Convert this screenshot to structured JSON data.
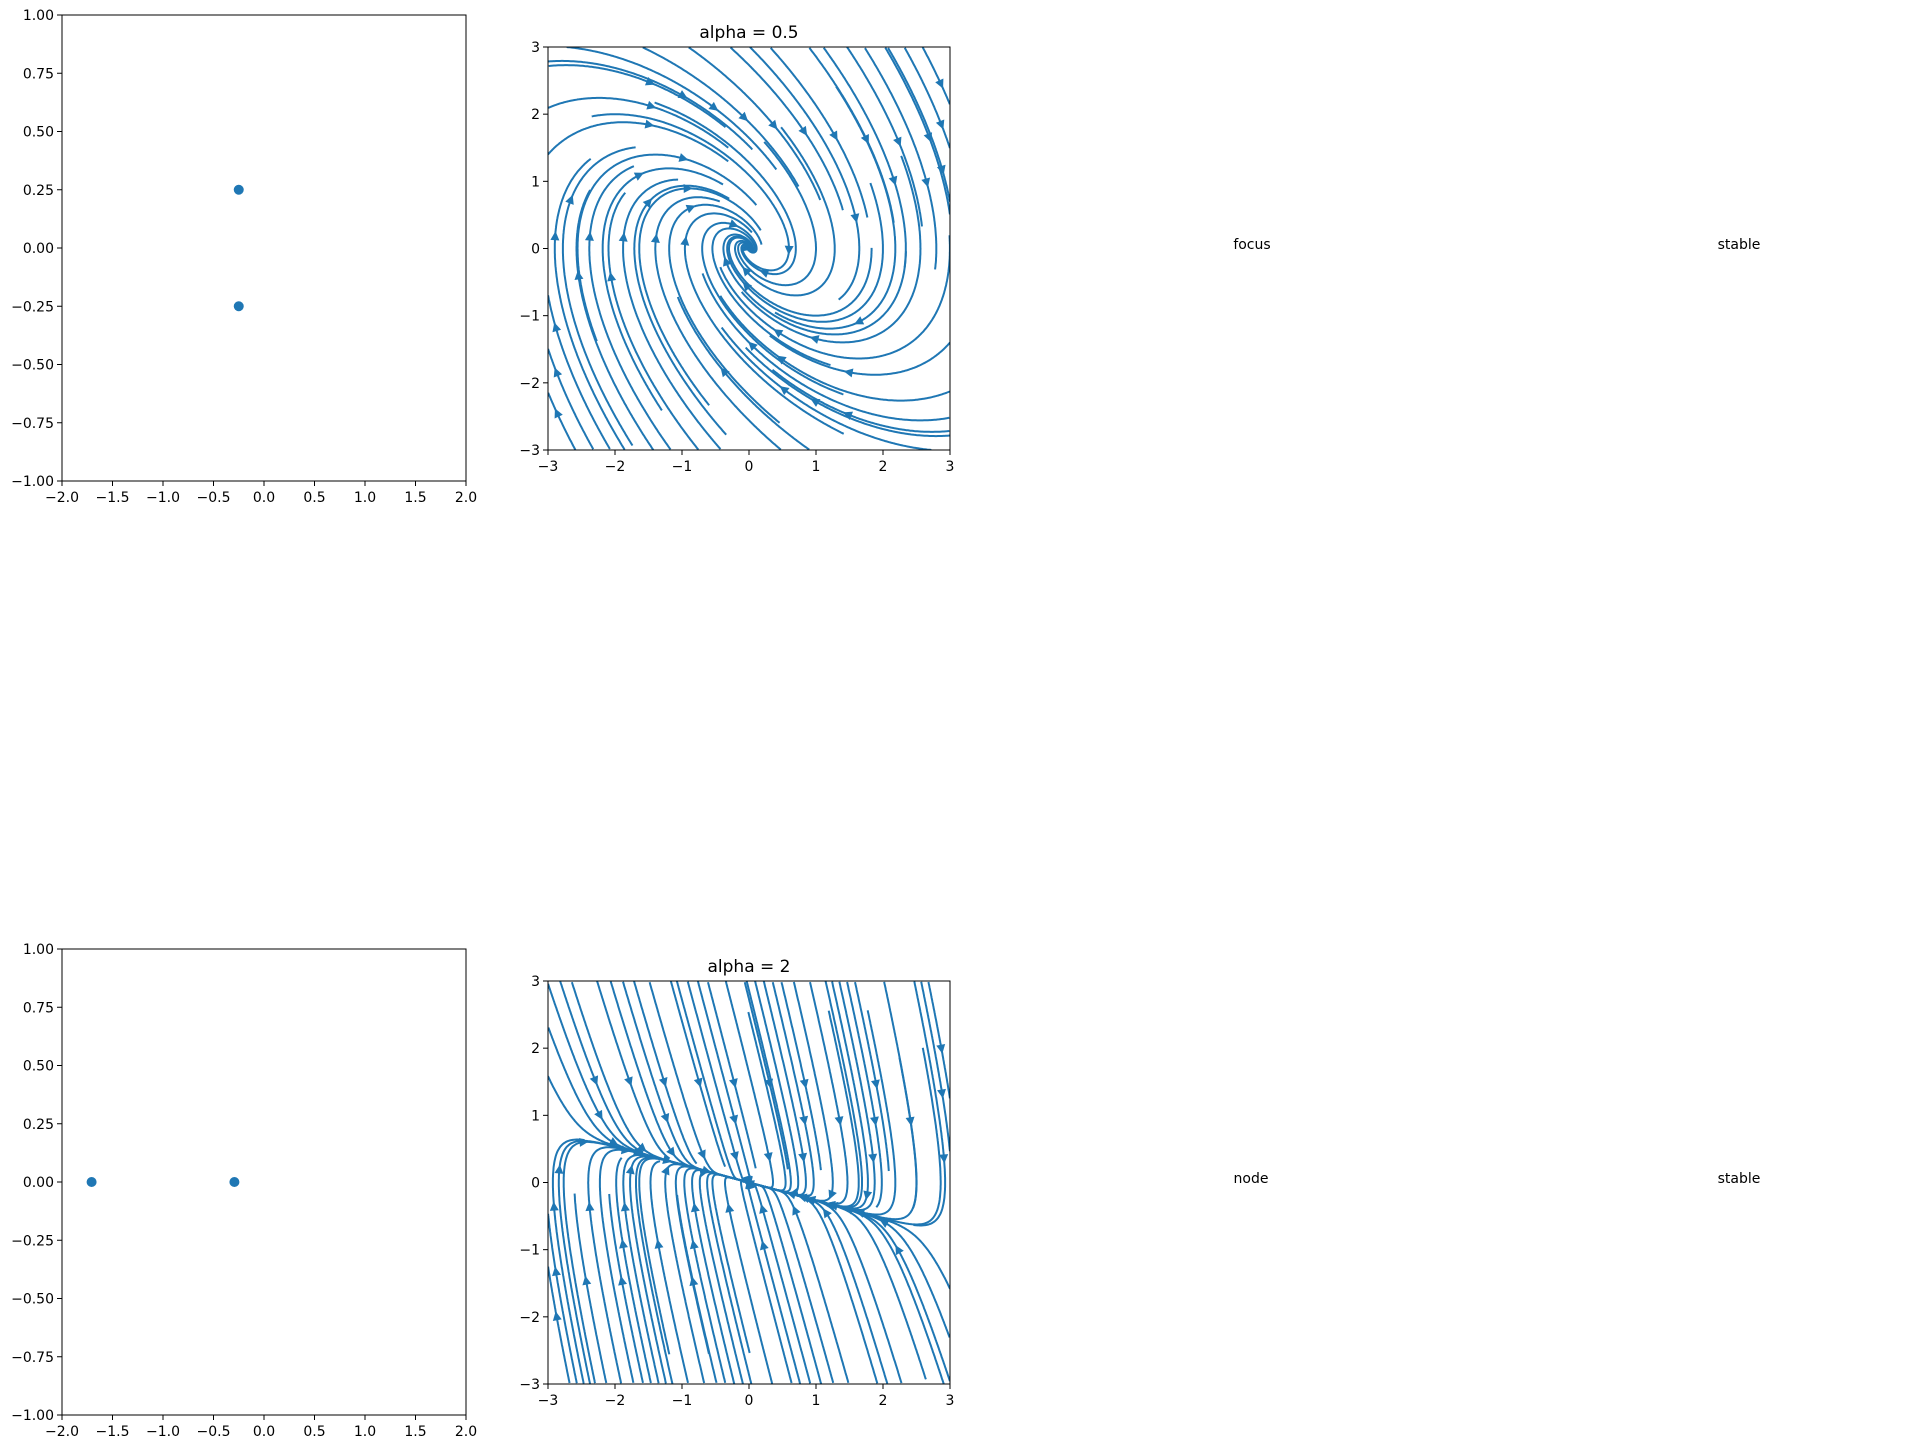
{
  "chart_data": [
    {
      "type": "scatter",
      "title": "",
      "xlim": [
        -2,
        2
      ],
      "ylim": [
        -1,
        1
      ],
      "xticks": [
        "−2.0",
        "−1.5",
        "−1.0",
        "−0.5",
        "0.0",
        "0.5",
        "1.0",
        "1.5",
        "2.0"
      ],
      "xtick_values": [
        -2,
        -1.5,
        -1,
        -0.5,
        0,
        0.5,
        1,
        1.5,
        2
      ],
      "yticks": [
        "−1.00",
        "−0.75",
        "−0.50",
        "−0.25",
        "0.00",
        "0.25",
        "0.50",
        "0.75",
        "1.00"
      ],
      "ytick_values": [
        -1,
        -0.75,
        -0.5,
        -0.25,
        0,
        0.25,
        0.5,
        0.75,
        1
      ],
      "points": [
        {
          "x": -0.25,
          "y": 0.25
        },
        {
          "x": -0.25,
          "y": -0.25
        }
      ],
      "color": "#1f77b4"
    },
    {
      "type": "streamplot",
      "title": "alpha = 0.5",
      "alpha": 0.5,
      "xlim": [
        -3,
        3
      ],
      "ylim": [
        -3,
        3
      ],
      "xticks": [
        "−3",
        "−2",
        "−1",
        "0",
        "1",
        "2",
        "3"
      ],
      "xtick_values": [
        -3,
        -2,
        -1,
        0,
        1,
        2,
        3
      ],
      "yticks": [
        "−3",
        "−2",
        "−1",
        "0",
        "1",
        "2",
        "3"
      ],
      "ytick_values": [
        -3,
        -2,
        -1,
        0,
        1,
        2,
        3
      ],
      "color": "#1f77b4"
    },
    {
      "type": "scatter",
      "title": "",
      "xlim": [
        -2,
        2
      ],
      "ylim": [
        -1,
        1
      ],
      "xticks": [
        "−2.0",
        "−1.5",
        "−1.0",
        "−0.5",
        "0.0",
        "0.5",
        "1.0",
        "1.5",
        "2.0"
      ],
      "xtick_values": [
        -2,
        -1.5,
        -1,
        -0.5,
        0,
        0.5,
        1,
        1.5,
        2
      ],
      "yticks": [
        "−1.00",
        "−0.75",
        "−0.50",
        "−0.25",
        "0.00",
        "0.25",
        "0.50",
        "0.75",
        "1.00"
      ],
      "ytick_values": [
        -1,
        -0.75,
        -0.5,
        -0.25,
        0,
        0.25,
        0.5,
        0.75,
        1
      ],
      "points": [
        {
          "x": -1.707,
          "y": 0
        },
        {
          "x": -0.293,
          "y": 0
        }
      ],
      "color": "#1f77b4"
    },
    {
      "type": "streamplot",
      "title": "alpha = 2",
      "alpha": 2,
      "xlim": [
        -3,
        3
      ],
      "ylim": [
        -3,
        3
      ],
      "xticks": [
        "−3",
        "−2",
        "−1",
        "0",
        "1",
        "2",
        "3"
      ],
      "xtick_values": [
        -3,
        -2,
        -1,
        0,
        1,
        2,
        3
      ],
      "yticks": [
        "−3",
        "−2",
        "−1",
        "0",
        "1",
        "2",
        "3"
      ],
      "ytick_values": [
        -3,
        -2,
        -1,
        0,
        1,
        2,
        3
      ],
      "color": "#1f77b4"
    }
  ],
  "annotations": [
    {
      "row": 0,
      "kind": "focus",
      "stability": "stable"
    },
    {
      "row": 1,
      "kind": "node",
      "stability": "stable"
    }
  ]
}
